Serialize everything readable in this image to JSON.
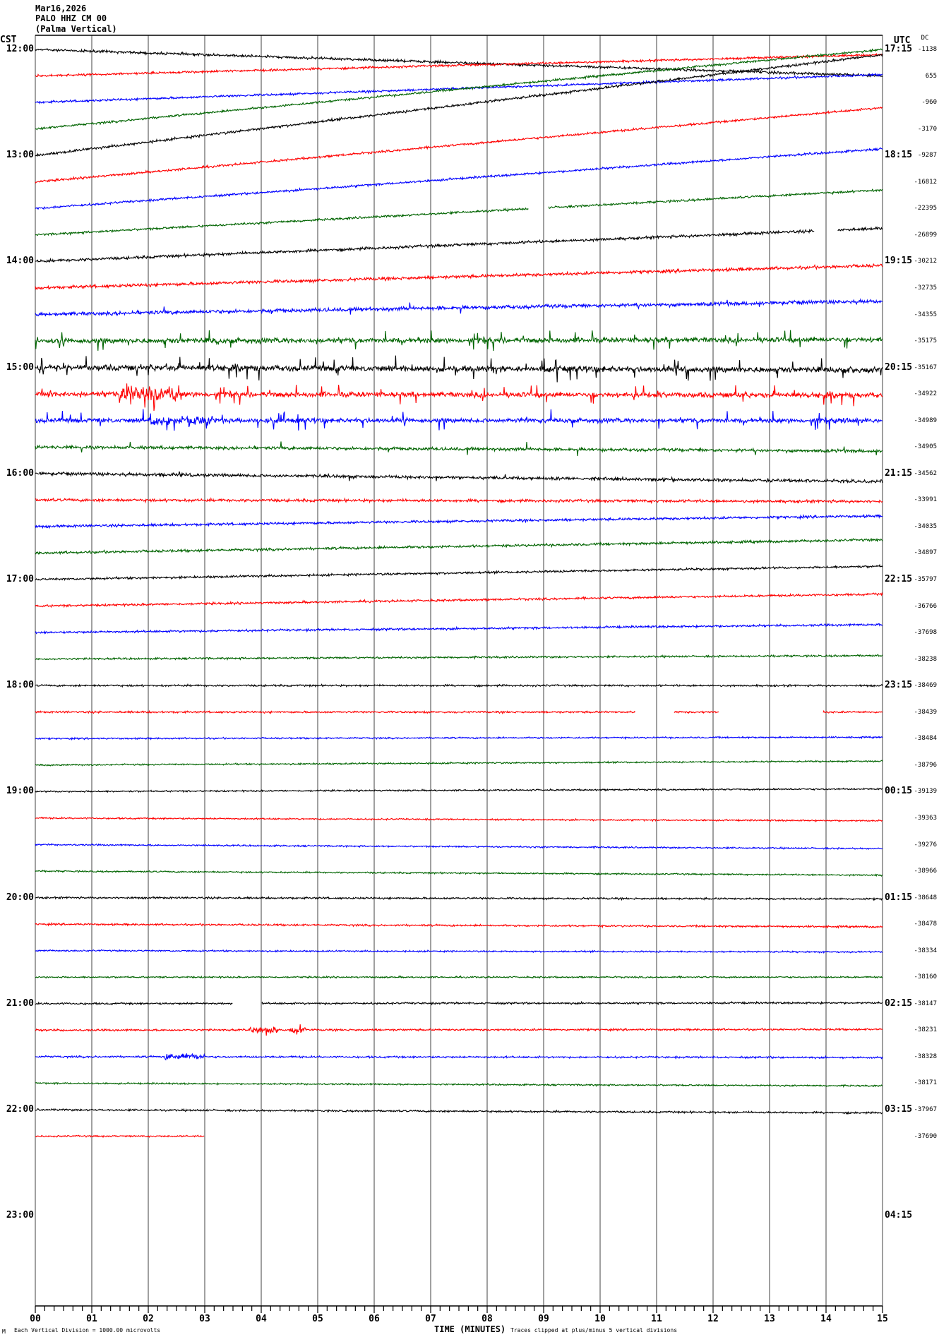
{
  "header": {
    "date": "Mar16,2026",
    "station": "PALO HHZ CM 00",
    "name": "(Palma Vertical)"
  },
  "left_tz": "CST",
  "right_tz": "UTC",
  "dc_header": "DC",
  "footer": {
    "logo": "M",
    "scale_note": "Each Vertical Division = 1000.00 microvolts",
    "xlabel": "TIME (MINUTES)",
    "clip_note": "Traces clipped at plus/minus 5 vertical divisions"
  },
  "chart_data": {
    "type": "line",
    "subtype": "helicorder",
    "xlabel": "TIME (MINUTES)",
    "xlim": [
      0,
      15
    ],
    "x_ticks": [
      "00",
      "01",
      "02",
      "03",
      "04",
      "05",
      "06",
      "07",
      "08",
      "09",
      "10",
      "11",
      "12",
      "13",
      "14",
      "15"
    ],
    "minor_ticks_per_minute": 6,
    "grid": "vertical lines every minute",
    "left_labels": [
      "12:00",
      "13:00",
      "14:00",
      "15:00",
      "16:00",
      "17:00",
      "18:00",
      "19:00",
      "20:00",
      "21:00",
      "22:00",
      "23:00"
    ],
    "right_labels": [
      "17:15",
      "18:15",
      "19:15",
      "20:15",
      "21:15",
      "22:15",
      "23:15",
      "00:15",
      "01:15",
      "02:15",
      "03:15",
      "04:15"
    ],
    "rows_total": 48,
    "colors": [
      "#000000",
      "#ff0000",
      "#0000ff",
      "#006400"
    ],
    "traces": [
      {
        "dc": "-1138",
        "drift": -1.0,
        "noise": 0.04
      },
      {
        "dc": "655",
        "drift": 0.8,
        "noise": 0.035
      },
      {
        "dc": "-960",
        "drift": 1.05,
        "noise": 0.035
      },
      {
        "dc": "-3170",
        "drift": 3.0,
        "noise": 0.035
      },
      {
        "dc": "-9287",
        "drift": 3.8,
        "noise": 0.04
      },
      {
        "dc": "-16812",
        "drift": 2.8,
        "noise": 0.035
      },
      {
        "dc": "-22395",
        "drift": 2.25,
        "noise": 0.035
      },
      {
        "dc": "-26899",
        "drift": 1.7,
        "noise": 0.035,
        "gaps": [
          [
            8.73,
            9.08
          ]
        ]
      },
      {
        "dc": "-30212",
        "drift": 1.25,
        "noise": 0.045,
        "gaps": [
          [
            13.79,
            14.2
          ]
        ]
      },
      {
        "dc": "-32735",
        "drift": 0.85,
        "noise": 0.05
      },
      {
        "dc": "-34355",
        "drift": 0.5,
        "noise": 0.06,
        "spikes": 0.01,
        "spike_amp": 0.25
      },
      {
        "dc": "-35175",
        "drift": 0.05,
        "noise": 0.08,
        "spikes": 0.04,
        "spike_amp": 0.4
      },
      {
        "dc": "-35167",
        "drift": -0.1,
        "noise": 0.09,
        "spikes": 0.05,
        "spike_amp": 0.45
      },
      {
        "dc": "-34922",
        "drift": -0.05,
        "noise": 0.08,
        "spikes": 0.04,
        "spike_amp": 0.4,
        "bursts": [
          [
            1.5,
            2.6,
            3
          ]
        ]
      },
      {
        "dc": "-34989",
        "drift": 0.0,
        "noise": 0.07,
        "spikes": 0.035,
        "spike_amp": 0.4,
        "bursts": [
          [
            2.0,
            3.2,
            2
          ]
        ]
      },
      {
        "dc": "-34905",
        "drift": -0.15,
        "noise": 0.05,
        "spikes": 0.01,
        "spike_amp": 0.3
      },
      {
        "dc": "-34562",
        "drift": -0.3,
        "noise": 0.05,
        "spikes": 0.005,
        "spike_amp": 0.15
      },
      {
        "dc": "-33991",
        "drift": -0.05,
        "noise": 0.045
      },
      {
        "dc": "-34035",
        "drift": 0.4,
        "noise": 0.04
      },
      {
        "dc": "-34897",
        "drift": 0.5,
        "noise": 0.04
      },
      {
        "dc": "-35797",
        "drift": 0.5,
        "noise": 0.035
      },
      {
        "dc": "-36766",
        "drift": 0.45,
        "noise": 0.035
      },
      {
        "dc": "-37698",
        "drift": 0.3,
        "noise": 0.035
      },
      {
        "dc": "-38238",
        "drift": 0.13,
        "noise": 0.03
      },
      {
        "dc": "-38469",
        "drift": 0.0,
        "noise": 0.03
      },
      {
        "dc": "-38439",
        "drift": 0.0,
        "noise": 0.03,
        "gaps": [
          [
            10.62,
            11.3
          ],
          [
            12.1,
            13.94
          ]
        ]
      },
      {
        "dc": "-38484",
        "drift": 0.05,
        "noise": 0.025
      },
      {
        "dc": "-38796",
        "drift": 0.15,
        "noise": 0.025
      },
      {
        "dc": "-39139",
        "drift": 0.1,
        "noise": 0.025
      },
      {
        "dc": "-39363",
        "drift": -0.1,
        "noise": 0.025
      },
      {
        "dc": "-39276",
        "drift": -0.15,
        "noise": 0.025
      },
      {
        "dc": "-38966",
        "drift": -0.15,
        "noise": 0.025
      },
      {
        "dc": "-38648",
        "drift": -0.05,
        "noise": 0.03
      },
      {
        "dc": "-38478",
        "drift": -0.1,
        "noise": 0.03
      },
      {
        "dc": "-38334",
        "drift": -0.05,
        "noise": 0.025
      },
      {
        "dc": "-38160",
        "drift": 0.0,
        "noise": 0.025
      },
      {
        "dc": "-38147",
        "drift": 0.03,
        "noise": 0.03,
        "gaps": [
          [
            3.5,
            4.01
          ]
        ]
      },
      {
        "dc": "-38231",
        "drift": 0.03,
        "noise": 0.03,
        "bursts": [
          [
            3.8,
            4.3,
            3
          ],
          [
            4.5,
            4.8,
            3
          ]
        ]
      },
      {
        "dc": "-38328",
        "drift": -0.03,
        "noise": 0.03,
        "bursts": [
          [
            2.3,
            3.0,
            3
          ]
        ]
      },
      {
        "dc": "-38171",
        "drift": -0.1,
        "noise": 0.025
      },
      {
        "dc": "-37967",
        "drift": -0.12,
        "noise": 0.03
      },
      {
        "dc": "-37690",
        "drift": 0.0,
        "noise": 0.025,
        "end": 3.0
      }
    ]
  }
}
